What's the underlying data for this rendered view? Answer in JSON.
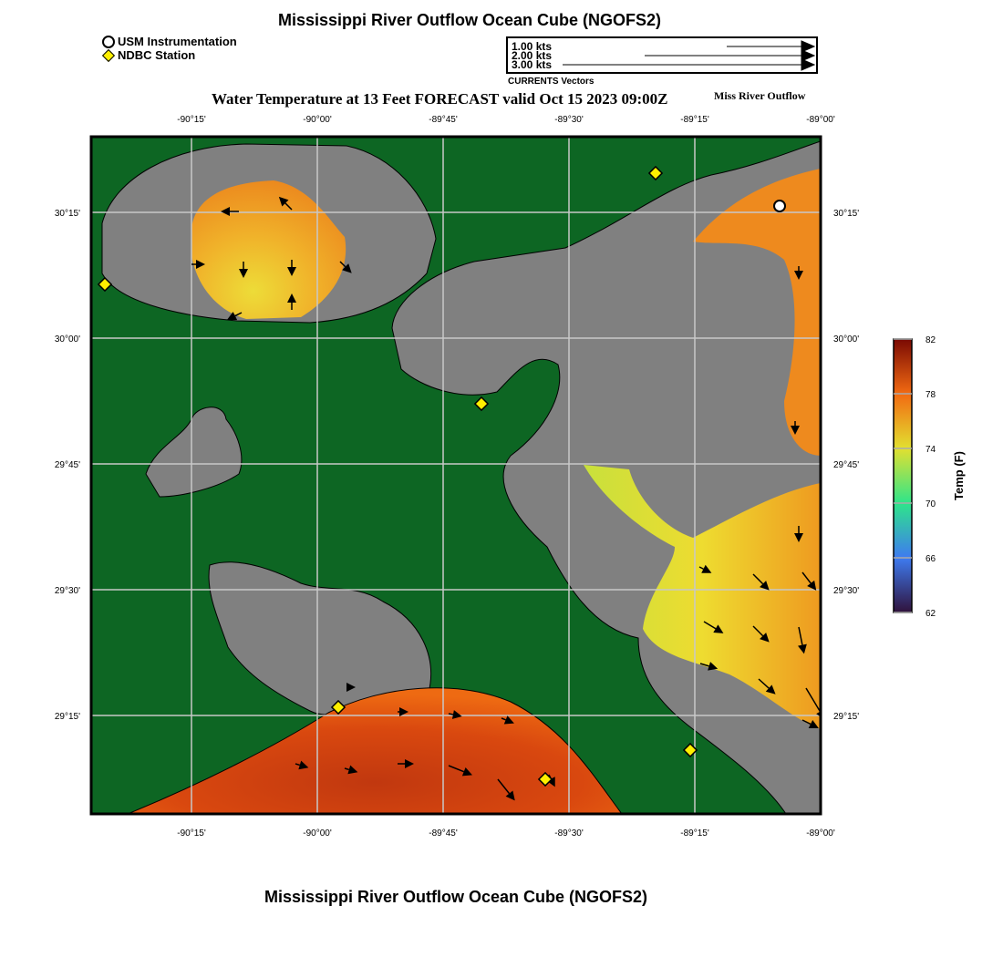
{
  "header": {
    "title": "Mississippi River Outflow Ocean Cube (NGOFS2)",
    "subtitle": "Water Temperature at 13 Feet FORECAST valid Oct 15 2023 09:00Z",
    "region_label": "Miss River Outflow"
  },
  "legend": {
    "usm": {
      "label": "USM Instrumentation",
      "icon": "white-circle-icon"
    },
    "ndbc": {
      "label": "NDBC Station",
      "icon": "yellow-diamond-icon"
    }
  },
  "vectors": {
    "caption": "CURRENTS Vectors",
    "scales": [
      "1.00 kts",
      "2.00 kts",
      "3.00 kts"
    ]
  },
  "map": {
    "lon_ticks": [
      "-90°15'",
      "-90°00'",
      "-89°45'",
      "-89°30'",
      "-89°15'",
      "-89°00'"
    ],
    "lat_ticks": [
      "30°15'",
      "30°00'",
      "29°45'",
      "29°30'",
      "29°15'"
    ],
    "colors": {
      "land": "#0d6623",
      "water": "#808080",
      "grid": "#c8c8c8"
    }
  },
  "colorbar": {
    "label": "Temp (F)",
    "ticks": [
      "82",
      "78",
      "74",
      "70",
      "66",
      "62"
    ],
    "min": 62,
    "max": 82
  },
  "footer": {
    "title": "Mississippi River Outflow Ocean Cube (NGOFS2)"
  }
}
